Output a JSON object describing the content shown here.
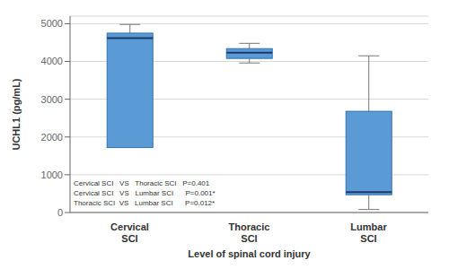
{
  "chart_data": {
    "type": "box",
    "xlabel": "Level of spinal cord injury",
    "ylabel": "UCHL1 (pg/mL)",
    "categories": [
      "Cervical\nSCI",
      "Thoracic\nSCI",
      "Lumbar\nSCI"
    ],
    "boxes": [
      {
        "whisker_low": 1720,
        "q1": 1720,
        "median": 4620,
        "q3": 4750,
        "whisker_high": 4980,
        "has_lower_whisker": false
      },
      {
        "whisker_low": 3960,
        "q1": 4080,
        "median": 4230,
        "q3": 4340,
        "whisker_high": 4480,
        "has_lower_whisker": true
      },
      {
        "whisker_low": 80,
        "q1": 470,
        "median": 540,
        "q3": 2680,
        "whisker_high": 4150,
        "has_lower_whisker": true
      }
    ],
    "color": "#5b9bd5",
    "ylim": [
      0,
      5200
    ],
    "yticks": [
      0,
      1000,
      2000,
      3000,
      4000,
      5000
    ],
    "grid": true,
    "annotation": "Cervical SCI   VS   Thoracic SCI   P=0.401\nCervical SCI   VS   Lumbar SCI      P=0.001*\nThoracic SCI  VS   Lumbar SCI      P=0.012*"
  }
}
